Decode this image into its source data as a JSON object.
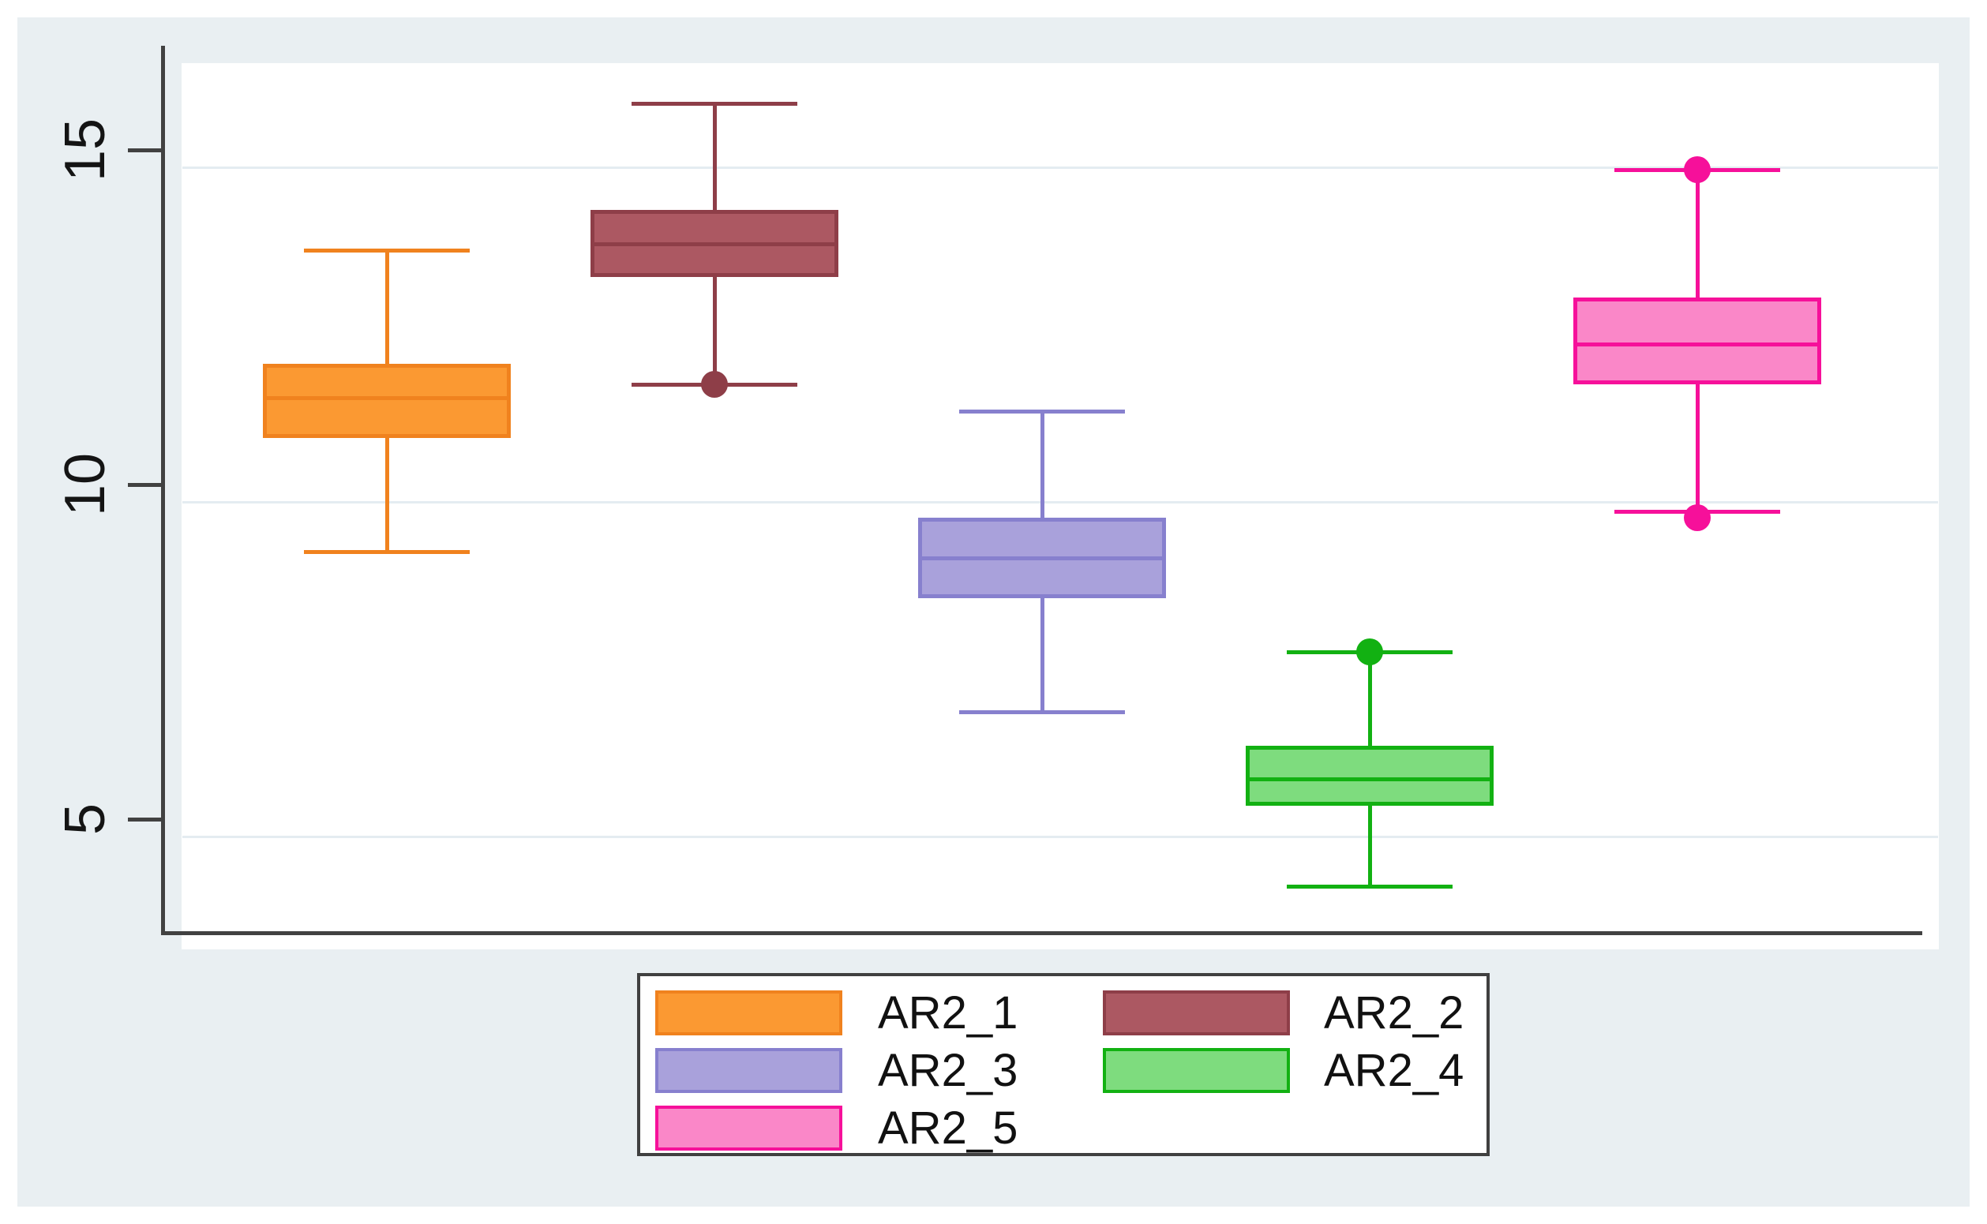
{
  "figure": {
    "background": "#FFFFFF",
    "panel_background": "#E9EFF2",
    "plot_background": "#FFFFFF",
    "axis_color": "#414141",
    "grid_color": "#E4ECF1",
    "tick_label_color": "#141414",
    "legend_background": "#FFFFFF",
    "legend_border_color": "#404040"
  },
  "y_axis": {
    "tick_values": [
      15,
      10,
      5
    ],
    "tick_labels": [
      "15",
      "10",
      "5"
    ]
  },
  "chart_data": {
    "type": "box",
    "orientation": "vertical",
    "title": "",
    "xlabel": "",
    "ylabel": "",
    "ylim": [
      3.3,
      16.5
    ],
    "yticks": [
      5,
      10,
      15
    ],
    "grid": true,
    "legend_position": "bottom-center",
    "series": [
      {
        "name": "AR2_1",
        "fill": "#FB9932",
        "stroke": "#F0821E",
        "whisker_low": 9.0,
        "q1": 10.7,
        "median": 11.3,
        "q3": 11.8,
        "whisker_high": 13.5,
        "outliers": []
      },
      {
        "name": "AR2_2",
        "fill": "#AC5862",
        "stroke": "#8E3E48",
        "whisker_low": 11.5,
        "q1": 13.1,
        "median": 13.6,
        "q3": 14.1,
        "whisker_high": 15.7,
        "outliers": [
          11.5
        ]
      },
      {
        "name": "AR2_3",
        "fill": "#A9A1DB",
        "stroke": "#8780CE",
        "whisker_low": 6.6,
        "q1": 8.3,
        "median": 8.9,
        "q3": 9.5,
        "whisker_high": 11.1,
        "outliers": []
      },
      {
        "name": "AR2_4",
        "fill": "#7EDC7E",
        "stroke": "#12B112",
        "whisker_low": 4.0,
        "q1": 5.2,
        "median": 5.6,
        "q3": 6.1,
        "whisker_high": 7.5,
        "outliers": [
          7.5
        ]
      },
      {
        "name": "AR2_5",
        "fill": "#FA87C8",
        "stroke": "#F6109A",
        "whisker_low": 9.6,
        "q1": 11.5,
        "median": 12.1,
        "q3": 12.8,
        "whisker_high": 14.7,
        "outliers": [
          14.7,
          9.5
        ]
      }
    ]
  },
  "legend": {
    "items": [
      {
        "label": "AR2_1"
      },
      {
        "label": "AR2_2"
      },
      {
        "label": "AR2_3"
      },
      {
        "label": "AR2_4"
      },
      {
        "label": "AR2_5"
      }
    ]
  }
}
